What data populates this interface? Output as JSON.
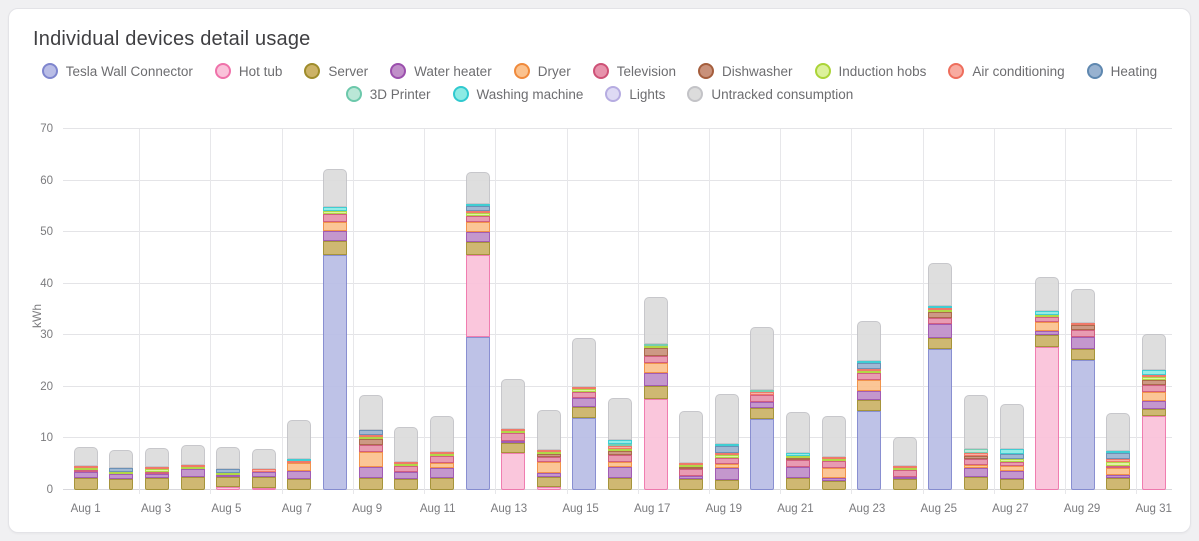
{
  "card": {
    "title": "Individual devices detail usage"
  },
  "y_axis": {
    "unit_label": "kWh",
    "ticks": [
      0,
      10,
      20,
      30,
      40,
      50,
      60,
      70
    ]
  },
  "chart_data": {
    "type": "bar",
    "stacked": true,
    "title": "Individual devices detail usage",
    "xlabel": "",
    "ylabel": "kWh",
    "ylim": [
      0,
      70
    ],
    "grid": true,
    "legend_position": "top",
    "x_tick_labels_shown": "odd days only",
    "categories": [
      "Aug 1",
      "Aug 2",
      "Aug 3",
      "Aug 4",
      "Aug 5",
      "Aug 6",
      "Aug 7",
      "Aug 8",
      "Aug 9",
      "Aug 10",
      "Aug 11",
      "Aug 12",
      "Aug 13",
      "Aug 14",
      "Aug 15",
      "Aug 16",
      "Aug 17",
      "Aug 18",
      "Aug 19",
      "Aug 20",
      "Aug 21",
      "Aug 22",
      "Aug 23",
      "Aug 24",
      "Aug 25",
      "Aug 26",
      "Aug 27",
      "Aug 28",
      "Aug 29",
      "Aug 30",
      "Aug 31"
    ],
    "series": [
      {
        "name": "Tesla Wall Connector",
        "fill": "#b9bde6",
        "border": "#7f86ce",
        "values": [
          0,
          0,
          0,
          0,
          0,
          0,
          0,
          45.6,
          0,
          0,
          0,
          29.6,
          0,
          0,
          14,
          0,
          0,
          0,
          0,
          13.7,
          0,
          0,
          15.4,
          0,
          27.3,
          0,
          0,
          0,
          25.2,
          0,
          0
        ]
      },
      {
        "name": "Hot tub",
        "fill": "#fac2da",
        "border": "#ef72aa",
        "values": [
          0,
          0,
          0,
          0,
          0.6,
          0.3,
          0,
          0,
          0,
          0,
          0,
          16,
          7.2,
          0.5,
          0,
          0,
          17.7,
          0,
          0,
          0,
          0,
          0,
          0,
          0,
          0,
          0,
          0,
          27.8,
          0,
          0,
          14.4
        ]
      },
      {
        "name": "Server",
        "fill": "#ccb267",
        "border": "#9f8c2b",
        "values": [
          2.3,
          2.2,
          2.3,
          2.5,
          1.9,
          2.2,
          2.2,
          2.6,
          2.3,
          2.2,
          2.4,
          2.5,
          2,
          2,
          2.1,
          2.4,
          2.4,
          2.1,
          2,
          2.3,
          2.3,
          1.8,
          2,
          2.2,
          2.2,
          2.5,
          2.1,
          2.2,
          2.1,
          2.3,
          1.3
        ]
      },
      {
        "name": "Water heater",
        "fill": "#c08fc9",
        "border": "#9b4fad",
        "values": [
          1.2,
          0.9,
          0.9,
          1.5,
          0.4,
          1,
          1.4,
          2,
          2.2,
          1.3,
          1.9,
          2,
          0.4,
          0.8,
          1.7,
          2,
          2.6,
          0.6,
          2.3,
          1.1,
          2.2,
          0.5,
          1.8,
          0.4,
          2.6,
          1.8,
          1.6,
          0.8,
          2.4,
          0.6,
          1.6
        ]
      },
      {
        "name": "Dryer",
        "fill": "#fbc28e",
        "border": "#f08a3c",
        "values": [
          0,
          0,
          0,
          0,
          0,
          0,
          1.6,
          1.8,
          2.8,
          0,
          1,
          1.8,
          0,
          2.2,
          0,
          1,
          2,
          0,
          0.8,
          0,
          0,
          2,
          2.2,
          0,
          0,
          0.5,
          1,
          1.8,
          0,
          1.3,
          1.7
        ]
      },
      {
        "name": "Television",
        "fill": "#e793ac",
        "border": "#ce5277",
        "values": [
          0.3,
          0,
          0.2,
          0,
          0,
          0,
          0,
          1.6,
          1.4,
          1.1,
          1.2,
          1.3,
          1.5,
          0.9,
          1.3,
          1.4,
          1.2,
          1.3,
          1.2,
          1.3,
          1.3,
          1.3,
          1.2,
          1.2,
          1.3,
          1.3,
          0.8,
          1,
          1.4,
          0.4,
          1.4
        ]
      },
      {
        "name": "Dishwasher",
        "fill": "#c9917a",
        "border": "#a55e3d",
        "values": [
          0,
          0,
          0,
          0,
          0,
          0,
          0,
          0,
          1.2,
          0,
          0,
          0,
          0,
          0.5,
          0,
          0.8,
          1.7,
          0.4,
          0,
          0,
          0.4,
          0,
          0,
          0,
          1.1,
          0.4,
          0,
          0,
          0.9,
          0,
          0.9
        ]
      },
      {
        "name": "Induction hobs",
        "fill": "#dcf19b",
        "border": "#abd438",
        "values": [
          0.4,
          0.3,
          0.4,
          0.4,
          0.3,
          0,
          0,
          0.6,
          0.4,
          0.3,
          0.4,
          0.6,
          0.3,
          0.3,
          0.4,
          0.3,
          0.3,
          0.3,
          0.4,
          0,
          0.3,
          0.4,
          0.5,
          0.3,
          0.4,
          0,
          0.5,
          0.4,
          0,
          0.9,
          0.7
        ]
      },
      {
        "name": "Air conditioning",
        "fill": "#f8aba0",
        "border": "#ee6e5d",
        "values": [
          0.4,
          0,
          0.3,
          0.4,
          0,
          0.4,
          0.4,
          0,
          0.4,
          0.4,
          0.4,
          0.3,
          0.4,
          0.3,
          0.5,
          0.5,
          0,
          0.4,
          0.4,
          0.6,
          0,
          0.3,
          0.4,
          0.3,
          0.4,
          0.6,
          0,
          0,
          0.2,
          0.5,
          0.3
        ]
      },
      {
        "name": "Heating",
        "fill": "#98b2d0",
        "border": "#5f88b0",
        "values": [
          0,
          0.8,
          0,
          0,
          0.7,
          0,
          0,
          0,
          0.9,
          0,
          0,
          0.8,
          0,
          0,
          0,
          0,
          0,
          0,
          1.4,
          0,
          0,
          0,
          1.2,
          0,
          0,
          0,
          1,
          0,
          0,
          1.2,
          0
        ]
      },
      {
        "name": "3D Printer",
        "fill": "#bae7d7",
        "border": "#6cc8ab",
        "values": [
          0,
          0,
          0,
          0,
          0,
          0,
          0,
          0,
          0,
          0,
          0,
          0,
          0,
          0,
          0,
          0.3,
          0.4,
          0,
          0,
          0.3,
          0,
          0,
          0,
          0,
          0,
          0.9,
          0,
          0,
          0,
          0,
          0
        ]
      },
      {
        "name": "Washing machine",
        "fill": "#8cebe4",
        "border": "#30c9cf",
        "values": [
          0,
          0,
          0,
          0,
          0,
          0,
          0.4,
          0.6,
          0,
          0,
          0,
          0.4,
          0,
          0,
          0,
          0.8,
          0,
          0,
          0.3,
          0,
          0.5,
          0,
          0.3,
          0,
          0.4,
          0,
          0.9,
          0.7,
          0,
          0.4,
          0.8
        ]
      },
      {
        "name": "Lights",
        "fill": "#dedaf4",
        "border": "#b6ace1",
        "values": [
          0,
          0,
          0,
          0,
          0,
          0,
          0,
          0,
          0,
          0,
          0,
          0,
          0,
          0,
          0,
          0,
          0,
          0,
          0,
          0,
          0,
          0,
          0,
          0,
          0,
          0,
          0,
          0,
          0,
          0,
          0
        ]
      },
      {
        "name": "Untracked consumption",
        "fill": "#dcdcdc",
        "border": "#c3c3c7",
        "values": [
          3.7,
          3.5,
          3.8,
          3.9,
          4.3,
          4,
          7.5,
          7.4,
          6.8,
          6.9,
          7,
          6.2,
          9.6,
          7.9,
          9.4,
          8.2,
          9.1,
          10.2,
          9.7,
          12.3,
          8.1,
          8,
          7.7,
          5.7,
          8.3,
          10.4,
          8.7,
          6.6,
          6.5,
          7.4,
          7.1
        ]
      }
    ]
  }
}
